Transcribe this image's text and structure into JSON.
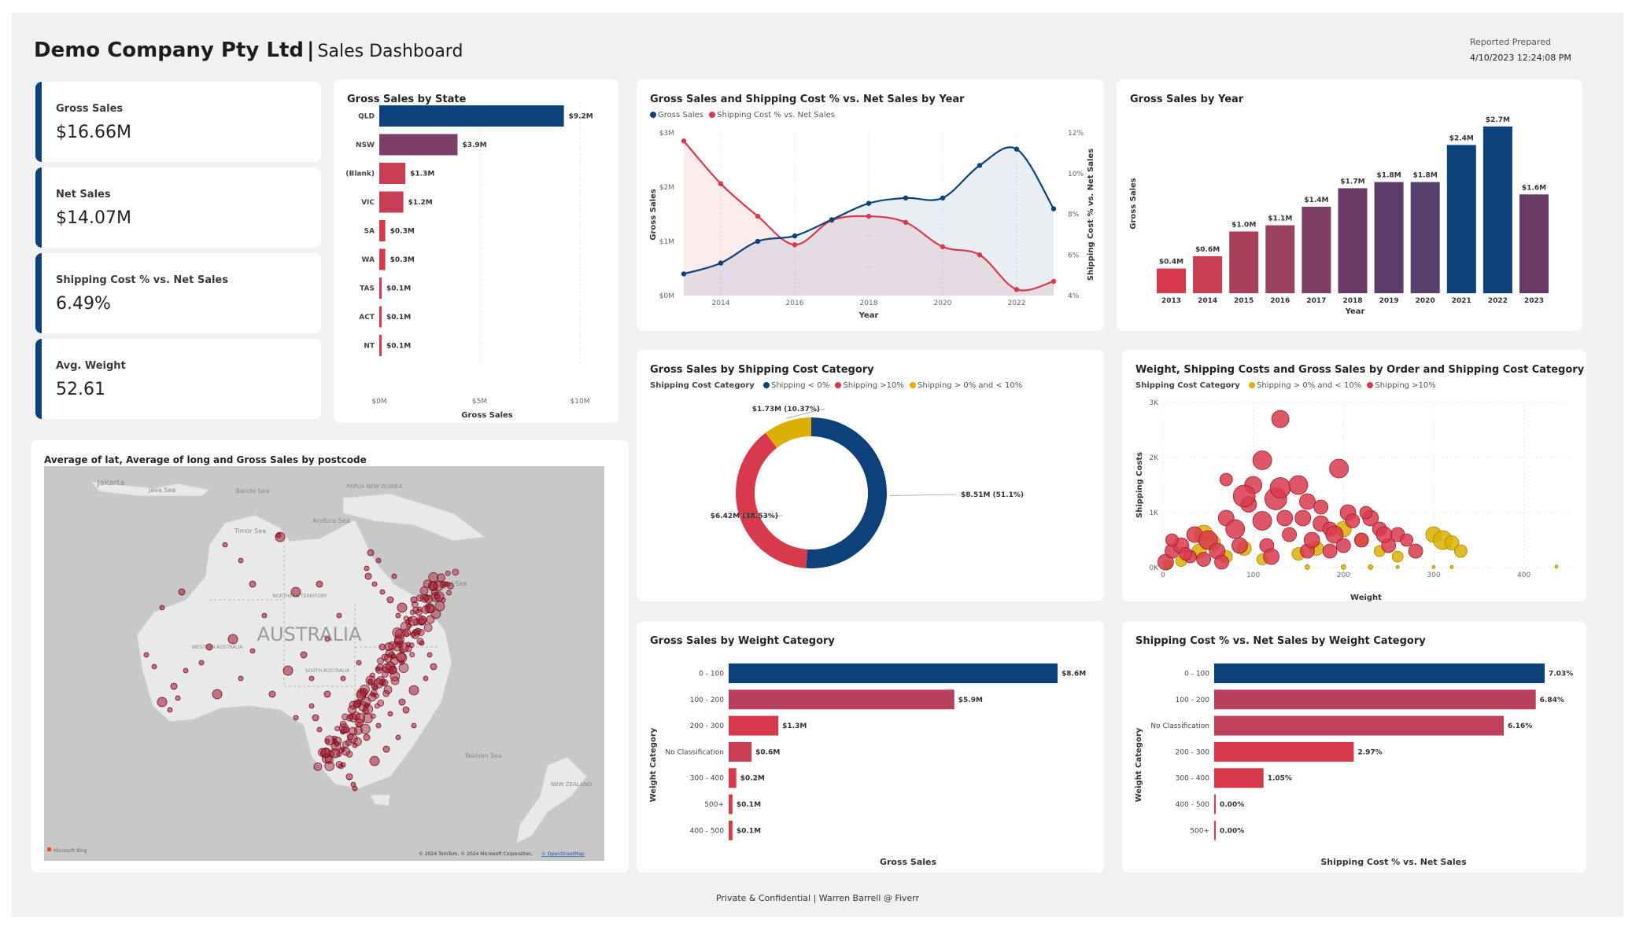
{
  "header": {
    "company": "Demo Company Pty Ltd",
    "separator": "|",
    "subtitle": "Sales Dashboard",
    "report_label": "Reported Prepared",
    "report_date": "4/10/2023 12:24:08 PM"
  },
  "footer": "Private & Confidential | Warren Barrell @ Fiverr",
  "colors": {
    "navy": "#0c417a",
    "plum": "#6b3a66",
    "wine": "#8b3d5e",
    "rose": "#b8405e",
    "red": "#d83a4d",
    "yellow": "#dbb000",
    "map_dot": "#a3132c"
  },
  "kpis": [
    {
      "label": "Gross Sales",
      "value": "$16.66M"
    },
    {
      "label": "Net Sales",
      "value": "$14.07M"
    },
    {
      "label": "Shipping Cost % vs. Net Sales",
      "value": "6.49%"
    },
    {
      "label": "Avg. Weight",
      "value": "52.61"
    }
  ],
  "chart_data": [
    {
      "type": "bar",
      "orientation": "horizontal",
      "title": "Gross Sales by State",
      "categories": [
        "QLD",
        "NSW",
        "(Blank)",
        "VIC",
        "SA",
        "WA",
        "TAS",
        "ACT",
        "NT"
      ],
      "values": [
        9.2,
        3.9,
        1.3,
        1.2,
        0.3,
        0.3,
        0.1,
        0.1,
        0.1
      ],
      "labels": [
        "$9.2M",
        "$3.9M",
        "$1.3M",
        "$1.2M",
        "$0.3M",
        "$0.3M",
        "$0.1M",
        "$0.1M",
        "$0.1M"
      ],
      "colors": [
        "#0c417a",
        "#7b3f68",
        "#c83f55",
        "#c83f55",
        "#d83a4d",
        "#d83a4d",
        "#d83a4d",
        "#d83a4d",
        "#d83a4d"
      ],
      "xlabel": "Gross Sales",
      "xticks": [
        "$0M",
        "$5M",
        "$10M"
      ],
      "xlim": [
        0,
        10
      ]
    },
    {
      "type": "line",
      "title": "Gross Sales and Shipping Cost % vs. Net Sales by Year",
      "legend": [
        "Gross Sales",
        "Shipping Cost % vs. Net Sales"
      ],
      "x": [
        2013,
        2014,
        2015,
        2016,
        2017,
        2018,
        2019,
        2020,
        2021,
        2022,
        2023
      ],
      "series": [
        {
          "name": "Gross Sales",
          "axis": "left",
          "color": "#0c417a",
          "values": [
            0.4,
            0.6,
            1.0,
            1.1,
            1.4,
            1.7,
            1.8,
            1.8,
            2.4,
            2.7,
            1.6
          ]
        },
        {
          "name": "Shipping Cost % vs. Net Sales",
          "axis": "right",
          "color": "#d83a4d",
          "values": [
            11.6,
            9.5,
            7.9,
            6.5,
            7.7,
            7.9,
            7.6,
            6.4,
            6.0,
            4.3,
            4.7
          ]
        }
      ],
      "xlabel": "Year",
      "ylabel": "Gross Sales",
      "y2label": "Shipping Cost % vs. Net Sales",
      "xticks": [
        "2014",
        "2016",
        "2018",
        "2020",
        "2022"
      ],
      "yticks": [
        "$0M",
        "$1M",
        "$2M",
        "$3M"
      ],
      "y2ticks": [
        "4%",
        "6%",
        "8%",
        "10%",
        "12%"
      ],
      "ylim": [
        0,
        3
      ],
      "y2lim": [
        4,
        12
      ]
    },
    {
      "type": "bar",
      "title": "Gross Sales by Year",
      "categories": [
        "2013",
        "2014",
        "2015",
        "2016",
        "2017",
        "2018",
        "2019",
        "2020",
        "2021",
        "2022",
        "2023"
      ],
      "values": [
        0.4,
        0.6,
        1.0,
        1.1,
        1.4,
        1.7,
        1.8,
        1.8,
        2.4,
        2.7,
        1.6
      ],
      "labels": [
        "$0.4M",
        "$0.6M",
        "$1.0M",
        "$1.1M",
        "$1.4M",
        "$1.7M",
        "$1.8M",
        "$1.8M",
        "$2.4M",
        "$2.7M",
        "$1.6M"
      ],
      "colors": [
        "#d83a4d",
        "#c83f55",
        "#a8405c",
        "#9a4160",
        "#7e3f66",
        "#6b3a66",
        "#5e3c6a",
        "#57406e",
        "#0c417a",
        "#0c417a",
        "#6b3a66"
      ],
      "xlabel": "Year",
      "ylabel": "Gross Sales",
      "ylim": [
        0,
        2.8
      ]
    },
    {
      "type": "pie",
      "donut": true,
      "title": "Gross Sales by Shipping Cost Category",
      "legend_title": "Shipping Cost Category",
      "legend": [
        "Shipping < 0%",
        "Shipping >10%",
        "Shipping > 0% and < 10%"
      ],
      "slices": [
        {
          "name": "Shipping < 0%",
          "value": 51.1,
          "label": "$8.51M (51.1%)",
          "color": "#0c417a"
        },
        {
          "name": "Shipping >10%",
          "value": 38.53,
          "label": "$6.42M (38.53%)",
          "color": "#d83a4d"
        },
        {
          "name": "Shipping > 0% and < 10%",
          "value": 10.37,
          "label": "$1.73M (10.37%)",
          "color": "#dbb000"
        }
      ]
    },
    {
      "type": "scatter",
      "title": "Weight, Shipping Costs and Gross Sales by Order and Shipping Cost Category",
      "legend_title": "Shipping Cost Category",
      "legend": [
        "Shipping > 0% and < 10%",
        "Shipping >10%"
      ],
      "xlabel": "Weight",
      "ylabel": "Shipping Costs",
      "xticks": [
        "0",
        "100",
        "200",
        "300",
        "400"
      ],
      "yticks": [
        "0K",
        "1K",
        "2K",
        "3K"
      ],
      "xlim": [
        0,
        450
      ],
      "ylim": [
        0,
        3000
      ],
      "series": [
        {
          "name": "Shipping > 0% and < 10%",
          "color": "#dbb000",
          "points": [
            [
              5,
              50,
              6
            ],
            [
              20,
              120,
              7
            ],
            [
              40,
              300,
              9
            ],
            [
              45,
              600,
              12
            ],
            [
              55,
              450,
              10
            ],
            [
              70,
              200,
              8
            ],
            [
              90,
              350,
              9
            ],
            [
              110,
              150,
              7
            ],
            [
              150,
              250,
              8
            ],
            [
              170,
              350,
              9
            ],
            [
              200,
              700,
              10
            ],
            [
              220,
              500,
              8
            ],
            [
              240,
              300,
              7
            ],
            [
              260,
              200,
              7
            ],
            [
              300,
              600,
              10
            ],
            [
              310,
              500,
              12
            ],
            [
              320,
              450,
              9
            ],
            [
              330,
              300,
              8
            ],
            [
              4,
              10,
              2
            ],
            [
              160,
              10,
              3
            ],
            [
              200,
              10,
              3
            ],
            [
              230,
              10,
              3
            ],
            [
              260,
              10,
              2
            ],
            [
              300,
              10,
              2
            ],
            [
              320,
              10,
              2
            ],
            [
              436,
              20,
              2
            ]
          ]
        },
        {
          "name": "Shipping >10%",
          "color": "#d83a4d",
          "points": [
            [
              3,
              100,
              10
            ],
            [
              10,
              300,
              9
            ],
            [
              20,
              400,
              10
            ],
            [
              30,
              200,
              8
            ],
            [
              35,
              600,
              10
            ],
            [
              50,
              500,
              12
            ],
            [
              60,
              300,
              10
            ],
            [
              65,
              100,
              9
            ],
            [
              70,
              900,
              10
            ],
            [
              80,
              700,
              12
            ],
            [
              85,
              400,
              10
            ],
            [
              95,
              1150,
              10
            ],
            [
              100,
              1500,
              11
            ],
            [
              110,
              850,
              12
            ],
            [
              115,
              400,
              9
            ],
            [
              120,
              200,
              10
            ],
            [
              125,
              1250,
              14
            ],
            [
              130,
              1450,
              13
            ],
            [
              135,
              900,
              10
            ],
            [
              140,
              600,
              9
            ],
            [
              150,
              1500,
              12
            ],
            [
              155,
              900,
              10
            ],
            [
              160,
              300,
              9
            ],
            [
              165,
              500,
              10
            ],
            [
              175,
              800,
              10
            ],
            [
              185,
              700,
              9
            ],
            [
              190,
              600,
              11
            ],
            [
              195,
              1800,
              12
            ],
            [
              200,
              400,
              9
            ],
            [
              205,
              1000,
              10
            ],
            [
              210,
              850,
              9
            ],
            [
              220,
              500,
              9
            ],
            [
              230,
              900,
              10
            ],
            [
              240,
              700,
              9
            ],
            [
              250,
              400,
              9
            ],
            [
              260,
              600,
              9
            ],
            [
              270,
              500,
              8
            ],
            [
              280,
              300,
              9
            ],
            [
              110,
              1950,
              12
            ],
            [
              90,
              1300,
              14
            ],
            [
              130,
              2700,
              11
            ],
            [
              70,
              1600,
              8
            ],
            [
              225,
              1000,
              8
            ],
            [
              245,
              600,
              10
            ],
            [
              185,
              300,
              9
            ],
            [
              45,
              150,
              9
            ],
            [
              25,
              250,
              8
            ],
            [
              10,
              500,
              8
            ],
            [
              160,
              1200,
              10
            ],
            [
              175,
              1100,
              9
            ]
          ]
        }
      ]
    },
    {
      "type": "bar",
      "orientation": "horizontal",
      "title": "Gross Sales by Weight Category",
      "categories": [
        "0 - 100",
        "100 - 200",
        "200 - 300",
        "No Classification",
        "300 - 400",
        "500+",
        "400 - 500"
      ],
      "values": [
        8.6,
        5.9,
        1.3,
        0.6,
        0.2,
        0.1,
        0.1
      ],
      "labels": [
        "$8.6M",
        "$5.9M",
        "$1.3M",
        "$0.6M",
        "$0.2M",
        "$0.1M",
        "$0.1M"
      ],
      "colors": [
        "#0c417a",
        "#b8405e",
        "#d83a4d",
        "#c83f55",
        "#d83a4d",
        "#d83a4d",
        "#d83a4d"
      ],
      "xlabel": "Gross Sales",
      "ylabel": "Weight Category",
      "xlim": [
        0,
        8.6
      ]
    },
    {
      "type": "bar",
      "orientation": "horizontal",
      "title": "Shipping Cost % vs. Net Sales by Weight Category",
      "categories": [
        "0 - 100",
        "100 - 200",
        "No Classification",
        "200 - 300",
        "300 - 400",
        "400 - 500",
        "500+"
      ],
      "values": [
        7.03,
        6.84,
        6.16,
        2.97,
        1.05,
        0.0,
        0.0
      ],
      "labels": [
        "7.03%",
        "6.84%",
        "6.16%",
        "2.97%",
        "1.05%",
        "0.00%",
        "0.00%"
      ],
      "colors": [
        "#0c417a",
        "#b8405e",
        "#c0405b",
        "#d83a4d",
        "#d83a4d",
        "#d83a4d",
        "#d83a4d"
      ],
      "xlabel": "Shipping Cost % vs. Net Sales",
      "ylabel": "Weight Category",
      "xlim": [
        0,
        7.03
      ]
    }
  ],
  "map": {
    "title": "Average of lat, Average of long and Gross Sales by postcode",
    "country_label": "AUSTRALIA",
    "place_labels": [
      "Jakarta",
      "Java Sea",
      "Banda Sea",
      "PAPUA NEW GUINEA",
      "Arafura Sea",
      "Timor Sea",
      "NORTHERN TERRITORY",
      "Coral Sea",
      "WESTERN AUSTRALIA",
      "SOUTH AUSTRALIA",
      "Tasman Sea",
      "NEW ZEALAND"
    ],
    "attribution": "© 2024 TomTom, © 2024 Microsoft Corporation,",
    "attribution_link": "© OpenStreetMap",
    "brand": "Microsoft Bing"
  }
}
